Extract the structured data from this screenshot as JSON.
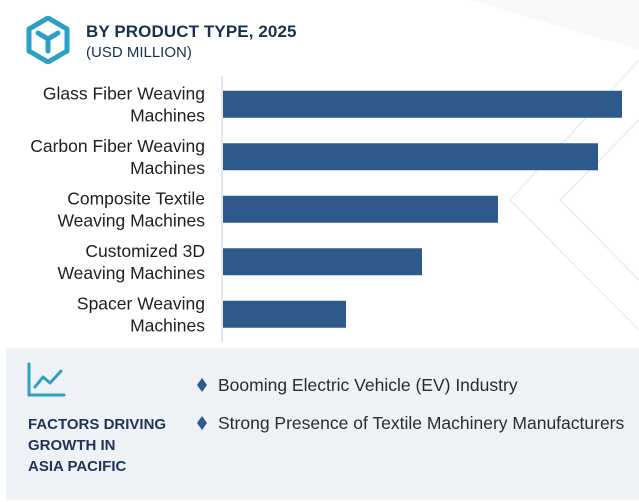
{
  "header": {
    "title": "BY PRODUCT TYPE, 2025",
    "subtitle": "(USD MILLION)"
  },
  "colors": {
    "bar": "#2d5a8a",
    "title": "#17324f",
    "panel": "#eef2f7",
    "accent": "#2d5a8a"
  },
  "icons": {
    "logo": "cube-icon",
    "factors": "line-chart-icon",
    "bullet": "diamond-icon"
  },
  "chart_data": {
    "type": "bar",
    "orientation": "horizontal",
    "categories": [
      "Glass Fiber Weaving Machines",
      "Carbon Fiber Weaving Machines",
      "Composite Textile Weaving Machines",
      "Customized 3D Weaving Machines",
      "Spacer Weaving Machines"
    ],
    "category_lines": [
      [
        "Glass Fiber Weaving",
        "Machines"
      ],
      [
        "Carbon Fiber Weaving",
        "Machines"
      ],
      [
        "Composite Textile",
        "Weaving Machines"
      ],
      [
        "Customized 3D",
        "Weaving Machines"
      ],
      [
        "Spacer Weaving",
        "Machines"
      ]
    ],
    "values": [
      100,
      94,
      69,
      50,
      31
    ],
    "xlim": [
      0,
      100
    ],
    "grid": false,
    "legend": "none",
    "xlabel": "",
    "ylabel": ""
  },
  "factors": {
    "title_lines": [
      "FACTORS DRIVING",
      "GROWTH IN",
      "ASIA PACIFIC"
    ],
    "items": [
      "Booming Electric Vehicle (EV) Industry",
      "Strong Presence of Textile Machinery Manufacturers"
    ]
  }
}
